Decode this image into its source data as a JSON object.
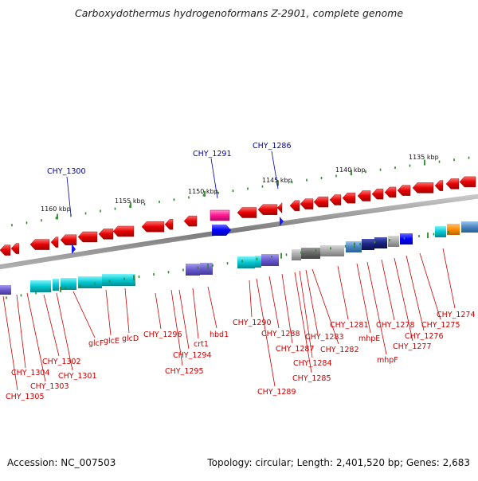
{
  "title": "Carboxydothermus hydrogenoformans Z-2901, complete genome",
  "footer": {
    "accession": "Accession: NC_007503",
    "summary": "Topology: circular; Length: 2,401,520 bp; Genes: 2,683"
  },
  "scale_labels": [
    "1160 kbp",
    "1155 kbp",
    "1150 kbp",
    "1145 kbp",
    "1140 kbp",
    "1135 kbp"
  ],
  "upper_labels": [
    "CHY_1300",
    "CHY_1291",
    "CHY_1286"
  ],
  "lower_labels": [
    "CHY_1305",
    "CHY_1304",
    "CHY_1303",
    "CHY_1302",
    "CHY_1301",
    "glcF",
    "glcE",
    "glcD",
    "CHY_1296",
    "CHY_1295",
    "CHY_1294",
    "crt1",
    "hbd1",
    "CHY_1290",
    "CHY_1289",
    "CHY_1288",
    "CHY_1287",
    "CHY_1285",
    "CHY_1284",
    "CHY_1283",
    "CHY_1282",
    "CHY_1281",
    "mhpE",
    "mhpF",
    "CHY_1278",
    "CHY_1277",
    "CHY_1276",
    "CHY_1275",
    "CHY_1274"
  ],
  "colors": {
    "backbone": "#8c8c8c",
    "gene_forward": "#e60000",
    "label_red": "#cc0000",
    "label_blue": "#0000aa",
    "tick_green": "#2e8b2e",
    "cyan": "#00c8d2",
    "slate": "#6a5acd",
    "navy": "#1a237e",
    "blue": "#0000ff",
    "pink": "#ff1493",
    "orange": "#ff8c00",
    "gray": "#9e9e9e"
  }
}
